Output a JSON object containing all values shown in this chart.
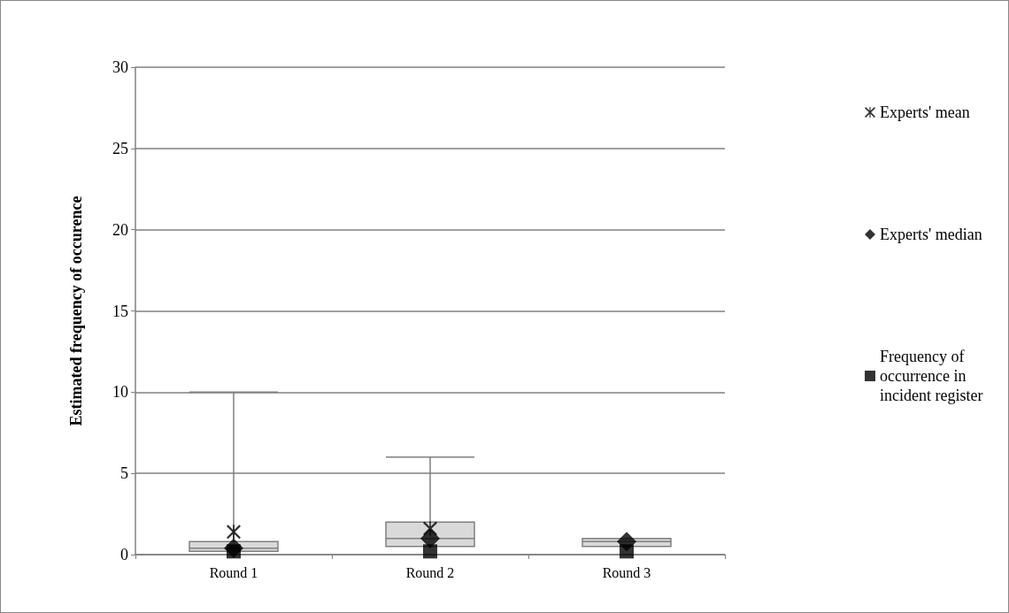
{
  "chart_data": {
    "type": "box",
    "ylabel": "Estimated frequency of occurence",
    "categories": [
      "Round 1",
      "Round 2",
      "Round 3"
    ],
    "color": "#d9d9d9",
    "boxes": [
      {
        "low": 0.2,
        "q1": 0.2,
        "median": 0.4,
        "q3": 0.8,
        "high": 10
      },
      {
        "low": 0.5,
        "q1": 0.5,
        "median": 1,
        "q3": 2,
        "high": 6
      },
      {
        "low": 0.5,
        "q1": 0.5,
        "median": 0.8,
        "q3": 1,
        "high": 1
      }
    ],
    "series": [
      {
        "type": "scatter",
        "name": "Experts' mean",
        "color": "#000000",
        "marker": "cross",
        "x": [
          "Round 1",
          "Round 2",
          "Round 3"
        ],
        "values": [
          1.4,
          1.6,
          null
        ]
      },
      {
        "type": "scatter",
        "name": "Experts' median",
        "color": "#000000",
        "marker": "diamond",
        "x": [
          "Round 1",
          "Round 2",
          "Round 3"
        ],
        "values": [
          0.4,
          1,
          0.8
        ]
      },
      {
        "type": "scatter",
        "name": "Frequency of occurrence in incident register",
        "color": "#000000",
        "marker": "square",
        "x": [
          "Round 1",
          "Round 2",
          "Round 3"
        ],
        "values": [
          0.2,
          0.2,
          0.2
        ]
      }
    ],
    "ylim": [
      0,
      30
    ],
    "yticks": [
      0,
      5,
      10,
      15,
      20,
      25,
      30
    ],
    "grid": "y",
    "legend": "right"
  }
}
